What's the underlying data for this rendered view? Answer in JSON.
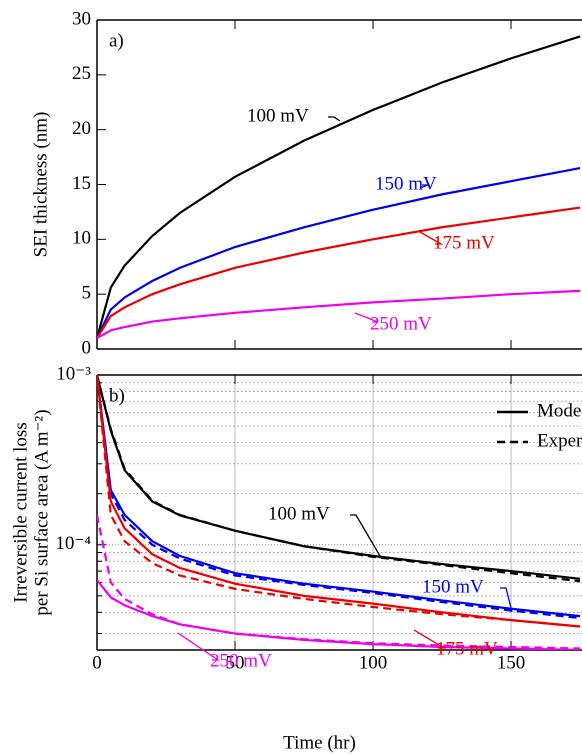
{
  "chart_data": [
    {
      "type": "line",
      "panel_label": "a)",
      "ylabel": "SEI thickness (nm)",
      "x": [
        0,
        5,
        10,
        20,
        30,
        50,
        75,
        100,
        125,
        150,
        175
      ],
      "xlim": [
        0,
        176
      ],
      "xticks": [
        0,
        50,
        100,
        150
      ],
      "show_xtick_labels": false,
      "ylim": [
        0,
        30
      ],
      "yticks": [
        0,
        5,
        10,
        15,
        20,
        25,
        30
      ],
      "grid": false,
      "series": [
        {
          "name": "100 mV",
          "color": "#000000",
          "values": [
            1,
            5.6,
            7.6,
            10.3,
            12.4,
            15.7,
            19,
            21.8,
            24.3,
            26.5,
            28.5
          ]
        },
        {
          "name": "150 mV",
          "color": "#0000ee",
          "values": [
            1,
            3.6,
            4.7,
            6.2,
            7.4,
            9.3,
            11.1,
            12.7,
            14.1,
            15.3,
            16.5
          ]
        },
        {
          "name": "175 mV",
          "color": "#ee0000",
          "values": [
            1,
            3.0,
            3.8,
            5.0,
            5.9,
            7.4,
            8.8,
            10,
            11.1,
            12.0,
            12.9
          ]
        },
        {
          "name": "250 mV",
          "color": "#ee00ee",
          "values": [
            1,
            1.7,
            2.0,
            2.5,
            2.8,
            3.3,
            3.8,
            4.25,
            4.6,
            5.0,
            5.3
          ]
        }
      ]
    },
    {
      "type": "line",
      "panel_label": "b)",
      "ylabel": [
        "Irreversible current loss",
        "per Si surface area (A m⁻²)"
      ],
      "xlabel": "Time (hr)",
      "log_y": true,
      "x": [
        0,
        5,
        10,
        20,
        30,
        50,
        75,
        100,
        125,
        150,
        175
      ],
      "xlim": [
        0,
        176
      ],
      "xticks": [
        0,
        50,
        100,
        150
      ],
      "show_xtick_labels": true,
      "ylim": [
        2.4e-05,
        0.001
      ],
      "yticks": [
        {
          "value": 0.001,
          "label": "10⁻³"
        },
        {
          "value": 0.0001,
          "label": "10⁻⁴"
        }
      ],
      "minor_yticks": [
        3e-05,
        4e-05,
        5e-05,
        6e-05,
        7e-05,
        8e-05,
        9e-05,
        0.0002,
        0.0003,
        0.0004,
        0.0005,
        0.0006,
        0.0007,
        0.0008,
        0.0009
      ],
      "grid": true,
      "legend": [
        "Model",
        "Experiment"
      ],
      "series": [
        {
          "name": "100 mV",
          "color": "#000000",
          "model": [
            0.001,
            0.00047,
            0.000275,
            0.00018,
            0.000149,
            0.000121,
            9.8e-05,
            8.6e-05,
            7.7e-05,
            7e-05,
            6.3e-05
          ],
          "experiment": [
            0.001,
            0.00048,
            0.00028,
            0.000182,
            0.00015,
            0.000121,
            9.8e-05,
            8.5e-05,
            7.6e-05,
            6.8e-05,
            6.1e-05
          ]
        },
        {
          "name": "150 mV",
          "color": "#0000ee",
          "model": [
            0.001,
            0.00021,
            0.00015,
            0.000105,
            8.6e-05,
            6.8e-05,
            5.9e-05,
            5.3e-05,
            4.7e-05,
            4.2e-05,
            3.8e-05
          ],
          "experiment": [
            0.001,
            0.0002,
            0.00014,
            0.0001,
            8.3e-05,
            6.6e-05,
            5.8e-05,
            5.2e-05,
            4.6e-05,
            4.1e-05,
            3.7e-05
          ]
        },
        {
          "name": "175 mV",
          "color": "#ee0000",
          "model": [
            0.001,
            0.00018,
            0.000125,
            8.8e-05,
            7.3e-05,
            5.9e-05,
            5e-05,
            4.5e-05,
            4e-05,
            3.6e-05,
            3.3e-05
          ],
          "experiment": [
            0.001,
            0.00015,
            0.000105,
            7.8e-05,
            6.6e-05,
            5.5e-05,
            4.8e-05,
            4.3e-05,
            3.9e-05,
            3.6e-05,
            3.3e-05
          ]
        },
        {
          "name": "250 mV",
          "color": "#ee00ee",
          "model": [
            6.2e-05,
            4.9e-05,
            4.4e-05,
            3.8e-05,
            3.4e-05,
            3e-05,
            2.75e-05,
            2.6e-05,
            2.5e-05,
            2.45e-05,
            2.4e-05
          ],
          "experiment": [
            0.00015,
            6e-05,
            4.8e-05,
            3.9e-05,
            3.4e-05,
            3e-05,
            2.78e-05,
            2.63e-05,
            2.55e-05,
            2.5e-05,
            2.45e-05
          ]
        }
      ]
    }
  ]
}
